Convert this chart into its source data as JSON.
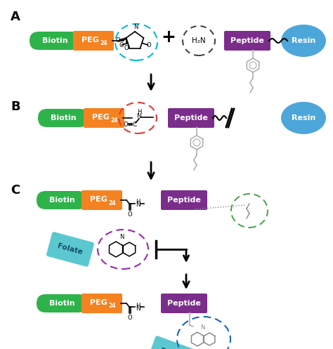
{
  "bg_color": "#ffffff",
  "biotin_color": "#2db34a",
  "peg_color": "#f58220",
  "peptide_color": "#7b2d8b",
  "resin_color": "#4da6d9",
  "folate_color": "#5bc8d0",
  "label_A": "A",
  "label_B": "B",
  "label_C": "C",
  "biotin_text": "Biotin",
  "peg_text": "PEG",
  "peptide_text": "Peptide",
  "resin_text": "Resin",
  "folate_text": "Folate",
  "text_color_light": "#ffffff",
  "text_color_folate": "#1a4a6b",
  "arrow_color": "#000000",
  "cyan_circle_color": "#00bcd4",
  "red_circle_color": "#e53935",
  "black_circle_color": "#444444",
  "purple_circle_color": "#9c27b0",
  "green_circle_color": "#43a047",
  "blue_circle_color": "#1565c0"
}
